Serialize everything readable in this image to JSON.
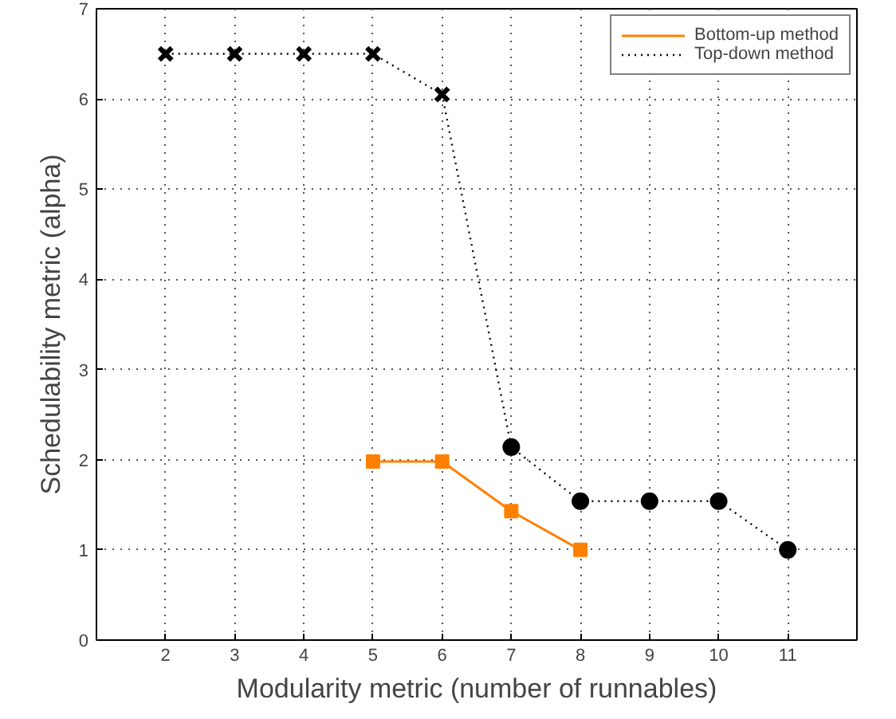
{
  "chart_data": {
    "type": "line",
    "xlabel": "Modularity metric (number of runnables)",
    "ylabel": "Schedulability metric (alpha)",
    "xlim": [
      1,
      12
    ],
    "xticks": [
      2,
      3,
      4,
      5,
      6,
      7,
      8,
      9,
      10,
      11
    ],
    "ylim": [
      0,
      7
    ],
    "yticks": [
      0,
      1,
      2,
      3,
      4,
      5,
      6,
      7
    ],
    "grid": true,
    "legend": "top right",
    "series": [
      {
        "name": "Bottom-up method",
        "color": "#ff8000",
        "x": [
          5,
          6,
          7,
          8
        ],
        "values": [
          1.98,
          1.98,
          1.43,
          1.0
        ],
        "marker": "square",
        "line_style": "solid"
      },
      {
        "name": "Top-down method",
        "color": "#000000",
        "x": [
          2,
          3,
          4,
          5,
          6,
          7,
          8,
          9,
          10,
          11
        ],
        "values": [
          6.5,
          6.5,
          6.5,
          6.5,
          6.05,
          2.14,
          1.54,
          1.54,
          1.54,
          1.0
        ],
        "marker": "none",
        "line_style": "dotted"
      },
      {
        "type": "scatter",
        "color": "#000000",
        "x": [
          2,
          3,
          4,
          5,
          6
        ],
        "values": [
          6.5,
          6.5,
          6.5,
          6.5,
          6.05
        ],
        "marker": "cross"
      },
      {
        "type": "scatter",
        "color": "#000000",
        "x": [
          7,
          8,
          9,
          10,
          11
        ],
        "values": [
          2.14,
          1.54,
          1.54,
          1.54,
          1.0
        ],
        "marker": "circle"
      }
    ]
  }
}
